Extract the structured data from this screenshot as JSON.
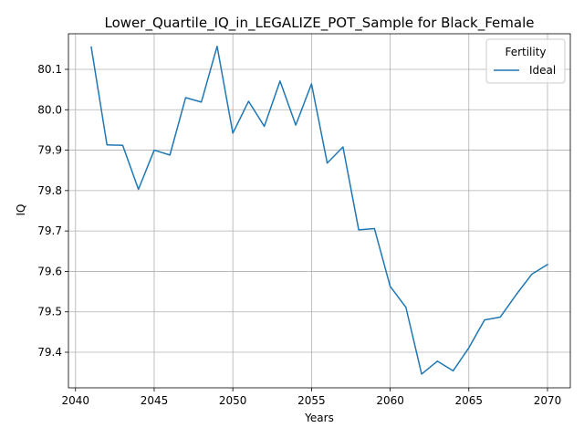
{
  "chart_data": {
    "type": "line",
    "title": "Lower_Quartile_IQ_in_LEGALIZE_POT_Sample for Black_Female",
    "xlabel": "Years",
    "ylabel": "IQ",
    "xlim": [
      2039.55,
      2071.45
    ],
    "ylim": [
      79.312,
      80.188
    ],
    "xticks": [
      2040,
      2045,
      2050,
      2055,
      2060,
      2065,
      2070
    ],
    "yticks": [
      79.4,
      79.5,
      79.6,
      79.7,
      79.8,
      79.9,
      80.0,
      80.1
    ],
    "ytick_labels": [
      "79.4",
      "79.5",
      "79.6",
      "79.7",
      "79.8",
      "79.9",
      "80.0",
      "80.1"
    ],
    "grid": true,
    "legend": {
      "title": "Fertility",
      "placement": "top-right"
    },
    "series": [
      {
        "name": "Ideal",
        "color": "#1f77b4",
        "x": [
          2041,
          2042,
          2043,
          2044,
          2045,
          2046,
          2047,
          2048,
          2049,
          2050,
          2051,
          2052,
          2053,
          2054,
          2055,
          2056,
          2057,
          2058,
          2059,
          2060,
          2061,
          2062,
          2063,
          2064,
          2065,
          2066,
          2067,
          2068,
          2069,
          2070
        ],
        "y": [
          80.155,
          79.913,
          79.912,
          79.803,
          79.9,
          79.888,
          80.03,
          80.019,
          80.157,
          79.942,
          80.021,
          79.959,
          80.071,
          79.962,
          80.064,
          79.868,
          79.908,
          79.703,
          79.706,
          79.563,
          79.511,
          79.346,
          79.378,
          79.354,
          79.411,
          79.48,
          79.487,
          79.542,
          79.593,
          79.617
        ]
      }
    ]
  }
}
